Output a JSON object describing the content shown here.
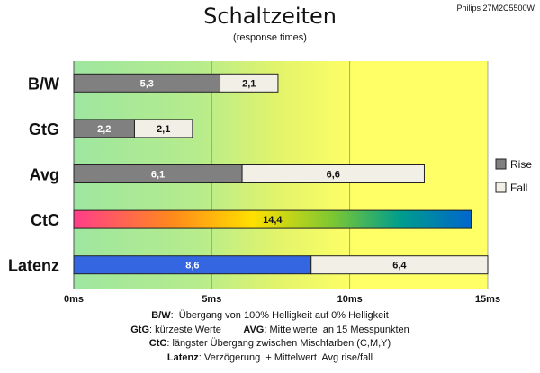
{
  "header": {
    "title": "Schaltzeiten",
    "subtitle": "(response times)",
    "model": "Philips 27M2C5500W"
  },
  "footnotes": [
    {
      "key": "B/W",
      "text": ":  Übergang von 100% Helligkeit auf 0% Helligkeit"
    },
    {
      "key": "GtG",
      "text": ": kürzeste Werte        ",
      "key2": "AVG",
      "text2": ": Mittelwerte  an 15 Messpunkten"
    },
    {
      "key": "CtC",
      "text": ": längster Übergang zwischen Mischfarben (C,M,Y)"
    },
    {
      "key": "Latenz",
      "text": ": Verzögerung  + Mittelwert  Avg rise/fall"
    }
  ],
  "chart_data": {
    "type": "bar",
    "orientation": "horizontal",
    "stacked": true,
    "categories": [
      "B/W",
      "GtG",
      "Avg",
      "CtC",
      "Latenz"
    ],
    "series": [
      {
        "name": "Rise",
        "values": [
          5.3,
          2.2,
          6.1,
          14.4,
          8.6
        ],
        "labels": [
          "5,3",
          "2,2",
          "6,1",
          "14,4",
          "8,6"
        ]
      },
      {
        "name": "Fall",
        "values": [
          2.1,
          2.1,
          6.6,
          null,
          6.4
        ],
        "labels": [
          "2,1",
          "2,1",
          "6,6",
          "",
          "6,4"
        ]
      }
    ],
    "xlim": [
      0,
      15
    ],
    "xticks": [
      0,
      5,
      10,
      15
    ],
    "xtick_labels": [
      "0ms",
      "5ms",
      "10ms",
      "15ms"
    ],
    "grid": true,
    "legend_position": "right",
    "colors": {
      "rise": "#808080",
      "fall": "#f2efe6",
      "latenz_rise": "#3366e0",
      "ctc_gradient": [
        "#ff3d8a",
        "#ff8a1a",
        "#ffe000",
        "#7dc832",
        "#009e8c",
        "#0066cc"
      ],
      "background_gradient": [
        "#9ee6a0",
        "#d6f070",
        "#ffff66"
      ]
    }
  }
}
